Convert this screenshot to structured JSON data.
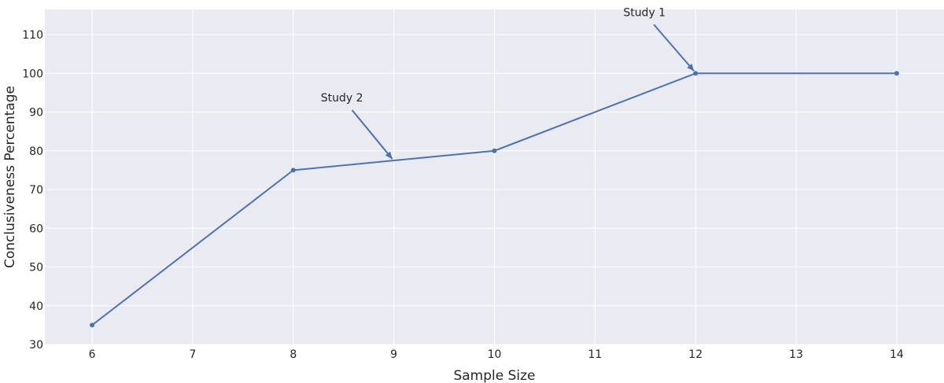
{
  "chart_data": {
    "type": "line",
    "title": "",
    "xlabel": "Sample Size",
    "ylabel": "Conclusiveness Percentage",
    "x": [
      6,
      8,
      10,
      12,
      14
    ],
    "series": [
      {
        "values": [
          35,
          75,
          80,
          100,
          100
        ]
      }
    ],
    "xlim": [
      5.53,
      14.47
    ],
    "ylim": [
      30,
      116.5
    ],
    "xticks": [
      6,
      7,
      8,
      9,
      10,
      11,
      12,
      13,
      14
    ],
    "yticks": [
      30,
      40,
      50,
      60,
      70,
      80,
      90,
      100,
      110
    ],
    "grid": true,
    "annotations": [
      {
        "text": "Study 1",
        "x": 12,
        "y": 100
      },
      {
        "text": "Study 2",
        "x": 9,
        "y": 77.5
      }
    ],
    "colors": {
      "line": "#4c72b0",
      "plot_background": "#eaeaf2",
      "grid": "#ffffff",
      "text": "#262626"
    }
  }
}
